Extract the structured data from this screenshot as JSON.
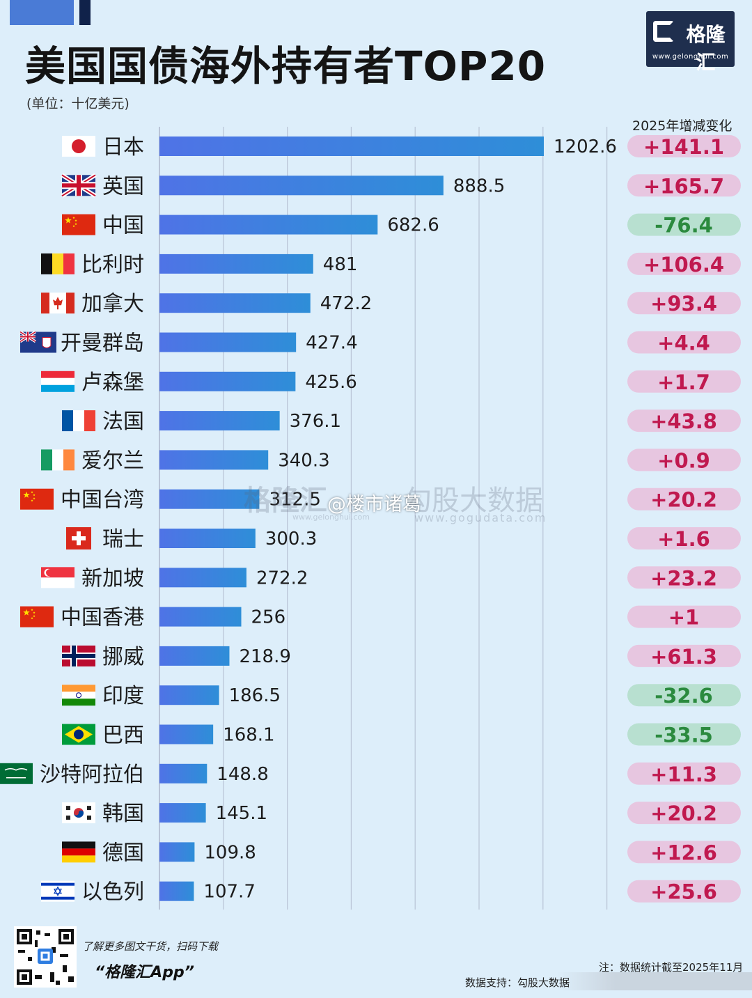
{
  "header": {
    "title": "美国国债海外持有者TOP20",
    "unit": "(单位：十亿美元)",
    "change_header": "2025年增减变化"
  },
  "logo": {
    "name": "格隆汇",
    "url": "www.gelonghui.com"
  },
  "watermark": {
    "brand1": "格隆汇",
    "brand1_url": "www.gelonghui.com",
    "brand2": "勾股大数据",
    "brand2_url": "www.gogudata.com",
    "weibo": "@楼市诸葛"
  },
  "footer": {
    "promo": "了解更多图文干货，扫码下载",
    "app": "“格隆汇App”",
    "note": "注：数据统计截至2025年11月",
    "source": "数据支持：勾股大数据"
  },
  "colors": {
    "bar_start": "#4f73e6",
    "bar_end": "#2e8ed8",
    "pos_pill": "#e7c6e0",
    "pos_text": "#c0194f",
    "neg_pill": "#b8e0d0",
    "neg_text": "#2b8a3e",
    "grid": "#b9c4d6"
  },
  "chart_data": {
    "type": "bar",
    "orientation": "horizontal",
    "title": "美国国债海外持有者TOP20",
    "unit": "十亿美元",
    "xlim": [
      0,
      1400
    ],
    "grid": true,
    "categories": [
      "日本",
      "英国",
      "中国",
      "比利时",
      "加拿大",
      "开曼群岛",
      "卢森堡",
      "法国",
      "爱尔兰",
      "中国台湾",
      "瑞士",
      "新加坡",
      "中国香港",
      "挪威",
      "印度",
      "巴西",
      "沙特阿拉伯",
      "韩国",
      "德国",
      "以色列"
    ],
    "values": [
      1202.6,
      888.5,
      682.6,
      481,
      472.2,
      427.4,
      425.6,
      376.1,
      340.3,
      312.5,
      300.3,
      272.2,
      256,
      218.9,
      186.5,
      168.1,
      148.8,
      145.1,
      109.8,
      107.7
    ],
    "value_labels": [
      "1202.6",
      "888.5",
      "682.6",
      "481",
      "472.2",
      "427.4",
      "425.6",
      "376.1",
      "340.3",
      "312.5",
      "300.3",
      "272.2",
      "256",
      "218.9",
      "186.5",
      "168.1",
      "148.8",
      "145.1",
      "109.8",
      "107.7"
    ],
    "changes": [
      141.1,
      165.7,
      -76.4,
      106.4,
      93.4,
      4.4,
      1.7,
      43.8,
      0.9,
      20.2,
      1.6,
      23.2,
      1,
      61.3,
      -32.6,
      -33.5,
      11.3,
      20.2,
      12.6,
      25.6
    ],
    "change_labels": [
      "+141.1",
      "+165.7",
      "-76.4",
      "+106.4",
      "+93.4",
      "+4.4",
      "+1.7",
      "+43.8",
      "+0.9",
      "+20.2",
      "+1.6",
      "+23.2",
      "+1",
      "+61.3",
      "-32.6",
      "-33.5",
      "+11.3",
      "+20.2",
      "+12.6",
      "+25.6"
    ],
    "flags": [
      "japan",
      "uk",
      "china",
      "belgium",
      "canada",
      "cayman",
      "luxembourg",
      "france",
      "ireland",
      "china",
      "switzerland",
      "singapore",
      "china",
      "norway",
      "india",
      "brazil",
      "saudi",
      "korea",
      "germany",
      "israel"
    ]
  }
}
